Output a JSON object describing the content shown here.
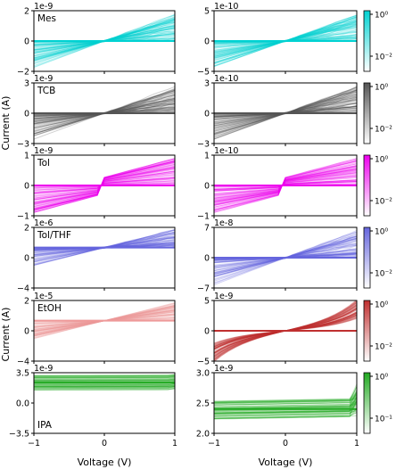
{
  "labels": {
    "xlabel": "Voltage (V)",
    "ylabel": "Current (A)"
  },
  "chart_data": [
    {
      "type": "heatmap",
      "name": "Mes",
      "panel": "left",
      "exponent": "1e-9",
      "xlim": [
        -1,
        1
      ],
      "ylim": [
        -2,
        2
      ],
      "yticks": [
        "−2",
        "0",
        "2"
      ],
      "color": "#00d2d2",
      "shape": "spread",
      "has_colorbar": false
    },
    {
      "type": "heatmap",
      "name": "",
      "panel": "right",
      "exponent": "1e-10",
      "xlim": [
        -1,
        1
      ],
      "ylim": [
        -5,
        5
      ],
      "yticks": [
        "−5",
        "0",
        "5"
      ],
      "color": "#00d2d2",
      "shape": "spread",
      "has_colorbar": true,
      "colorbar_ticks": [
        "10⁰",
        "10⁻²"
      ]
    },
    {
      "type": "heatmap",
      "name": "TCB",
      "panel": "left",
      "exponent": "1e-9",
      "xlim": [
        -1,
        1
      ],
      "ylim": [
        -3,
        3
      ],
      "yticks": [
        "−3",
        "0",
        "3"
      ],
      "color": "#555555",
      "shape": "spread",
      "has_colorbar": false
    },
    {
      "type": "heatmap",
      "name": "",
      "panel": "right",
      "exponent": "1e-10",
      "xlim": [
        -1,
        1
      ],
      "ylim": [
        -3,
        3
      ],
      "yticks": [
        "−3",
        "0",
        "3"
      ],
      "color": "#555555",
      "shape": "spread",
      "has_colorbar": true,
      "colorbar_ticks": [
        "10⁰",
        "10⁻²"
      ]
    },
    {
      "type": "heatmap",
      "name": "Tol",
      "panel": "left",
      "exponent": "1e-9",
      "xlim": [
        -1,
        1
      ],
      "ylim": [
        -1,
        1
      ],
      "yticks": [
        "−1",
        "0",
        "1"
      ],
      "color": "#ee00ee",
      "shape": "block",
      "has_colorbar": false
    },
    {
      "type": "heatmap",
      "name": "",
      "panel": "right",
      "exponent": "1e-10",
      "xlim": [
        -1,
        1
      ],
      "ylim": [
        -1,
        1
      ],
      "yticks": [
        "−1",
        "0",
        "1"
      ],
      "color": "#ee00ee",
      "shape": "block",
      "has_colorbar": true,
      "colorbar_ticks": [
        "10⁰",
        "10⁻²"
      ]
    },
    {
      "type": "heatmap",
      "name": "Tol/THF",
      "panel": "left",
      "exponent": "1e-6",
      "xlim": [
        -1,
        1
      ],
      "ylim": [
        -4,
        2
      ],
      "yticks": [
        "−4",
        "0",
        "2"
      ],
      "color": "#6666dd",
      "shape": "spread",
      "has_colorbar": false
    },
    {
      "type": "heatmap",
      "name": "",
      "panel": "right",
      "exponent": "1e-8",
      "xlim": [
        -1,
        1
      ],
      "ylim": [
        -7,
        7
      ],
      "yticks": [
        "−7",
        "0",
        "7"
      ],
      "color": "#6666dd",
      "shape": "spread",
      "has_colorbar": true,
      "colorbar_ticks": [
        "10⁰",
        "10⁻²"
      ]
    },
    {
      "type": "heatmap",
      "name": "EtOH",
      "panel": "left",
      "exponent": "1e-5",
      "xlim": [
        -1,
        1
      ],
      "ylim": [
        -4,
        2
      ],
      "yticks": [
        "−4",
        "0",
        "2"
      ],
      "color": "#ee9999",
      "shape": "thin",
      "has_colorbar": false
    },
    {
      "type": "heatmap",
      "name": "",
      "panel": "right",
      "exponent": "1e-9",
      "xlim": [
        -1,
        1
      ],
      "ylim": [
        -5,
        5
      ],
      "yticks": [
        "−5",
        "0",
        "5"
      ],
      "color": "#c03030",
      "shape": "sigmoid",
      "has_colorbar": true,
      "colorbar_ticks": [
        "10⁰",
        "10⁻²"
      ]
    },
    {
      "type": "heatmap",
      "name": "IPA",
      "panel": "left",
      "exponent": "1e-9",
      "xlim": [
        -1,
        1
      ],
      "ylim": [
        -3.5,
        3.5
      ],
      "yticks": [
        "−3.5",
        "0.0",
        "3.5"
      ],
      "color": "#22aa22",
      "shape": "flatband",
      "band": [
        1.5,
        3.2
      ],
      "has_colorbar": false
    },
    {
      "type": "heatmap",
      "name": "",
      "panel": "right",
      "exponent": "1e-9",
      "xlim": [
        -1,
        1
      ],
      "ylim": [
        2.0,
        3.0
      ],
      "yticks": [
        "2.0",
        "2.5",
        "3.0"
      ],
      "color": "#22aa22",
      "shape": "flatband",
      "band": [
        2.25,
        2.55
      ],
      "has_colorbar": true,
      "colorbar_ticks": [
        "10⁰",
        "10⁻¹"
      ]
    }
  ],
  "xticks": [
    "−1",
    "0",
    "1"
  ]
}
